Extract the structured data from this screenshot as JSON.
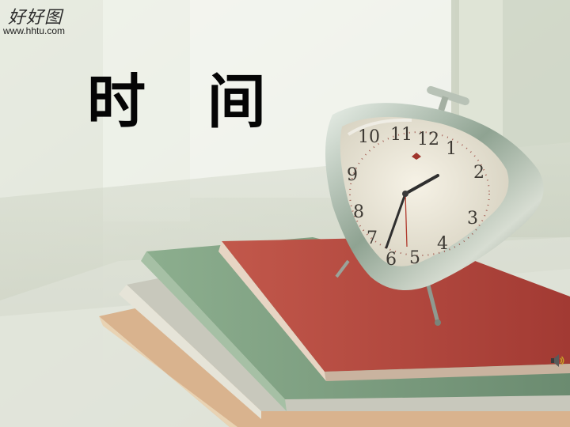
{
  "slide": {
    "title": "时 间"
  },
  "watermark": {
    "logo_text": "好好图",
    "url": "www.hhtu.com"
  },
  "clock": {
    "dial_numbers": [
      "12",
      "1",
      "2",
      "3",
      "4",
      "5",
      "6",
      "7",
      "8",
      "9",
      "10",
      "11"
    ]
  },
  "icons": {
    "speaker": "speaker-icon"
  },
  "colors": {
    "background": "#e9ece4",
    "title_text": "#050505",
    "book_red": "#b9453b",
    "book_green": "#7d9f80",
    "clock_face": "#eeeadb"
  }
}
